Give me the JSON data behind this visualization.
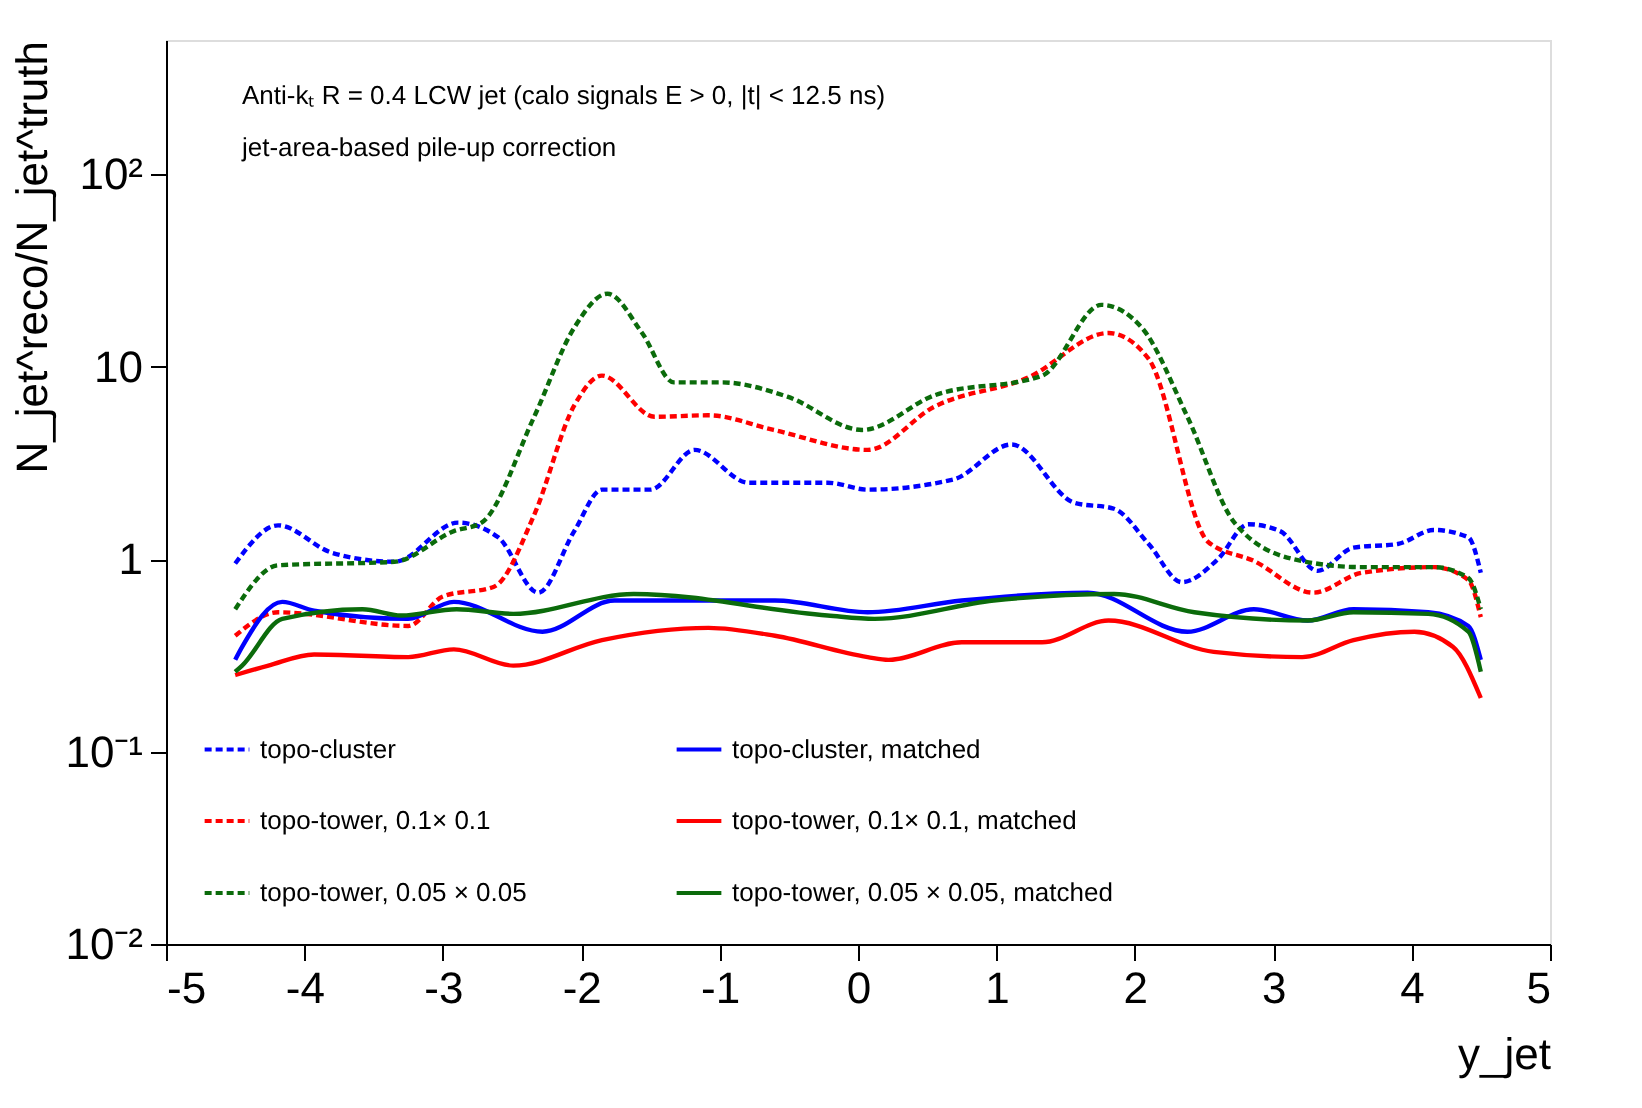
{
  "chart_data": {
    "type": "line",
    "xlabel": "y_jet",
    "ylabel": "N_jet^reco/N_jet^truth",
    "annotations": [
      "Anti-kₜ R = 0.4 LCW jet (calo signals E > 0, |t| < 12.5 ns)",
      "jet-area-based pile-up correction"
    ],
    "xlim": [
      -5,
      5
    ],
    "xticks": [
      -5,
      -4,
      -3,
      -2,
      -1,
      0,
      1,
      2,
      3,
      4,
      5
    ],
    "ylim": [
      0.01,
      500
    ],
    "yticks": [
      {
        "value": 0.01,
        "label": "10⁻²"
      },
      {
        "value": 0.1,
        "label": "10⁻¹"
      },
      1,
      10,
      {
        "value": 100,
        "label": "10²"
      }
    ],
    "log": "y",
    "grid": false,
    "legend": "bottom left",
    "marker": "none",
    "series": [
      {
        "name": "topo-cluster",
        "color": "#0000ff",
        "line_style": "dashed",
        "x": [
          -4.5,
          -4.19,
          -3.8,
          -3.35,
          -2.89,
          -2.6,
          -2.31,
          -2.05,
          -1.85,
          -1.5,
          -1.18,
          -0.79,
          -0.22,
          0.07,
          0.69,
          1.11,
          1.56,
          1.85,
          2.1,
          2.34,
          2.6,
          2.82,
          3.05,
          3.32,
          3.58,
          3.9,
          4.16,
          4.41,
          4.5
        ],
        "values": [
          0.95,
          1.5,
          1.08,
          0.97,
          1.55,
          1.3,
          0.67,
          1.4,
          2.3,
          2.3,
          3.7,
          2.5,
          2.5,
          2.3,
          2.6,
          3.95,
          1.97,
          1.83,
          1.2,
          0.76,
          1.0,
          1.52,
          1.4,
          0.87,
          1.15,
          1.2,
          1.42,
          1.3,
          0.85
        ]
      },
      {
        "name": "topo-tower, 0.1× 0.1",
        "color": "#ff0000",
        "line_style": "dashed",
        "x": [
          -4.5,
          -4.19,
          -3.25,
          -3.0,
          -2.63,
          -2.34,
          -2.05,
          -1.85,
          -1.47,
          -1.08,
          -0.61,
          0.07,
          0.55,
          1.23,
          1.81,
          2.1,
          2.53,
          2.86,
          3.29,
          3.64,
          4.16,
          4.41,
          4.5
        ],
        "values": [
          0.4,
          0.53,
          0.45,
          0.64,
          0.72,
          1.7,
          6.3,
          9,
          5.5,
          5.6,
          4.7,
          3.7,
          6.2,
          8.8,
          15,
          11,
          1.23,
          0.98,
          0.67,
          0.85,
          0.91,
          0.78,
          0.5
        ]
      },
      {
        "name": "topo-tower, 0.05 × 0.05",
        "color": "#0b6b0b",
        "line_style": "dashed",
        "x": [
          -4.5,
          -4.19,
          -3.35,
          -2.92,
          -2.72,
          -2.34,
          -2.05,
          -1.81,
          -1.56,
          -1.33,
          -0.98,
          -0.51,
          0.03,
          0.55,
          1.33,
          1.76,
          2.05,
          2.38,
          2.72,
          3.15,
          3.64,
          4.16,
          4.41,
          4.5
        ],
        "values": [
          0.55,
          0.93,
          0.97,
          1.4,
          1.55,
          5.5,
          16,
          24,
          15,
          8.3,
          8.3,
          7,
          4.7,
          7.1,
          9,
          21,
          16,
          5.5,
          1.55,
          1.0,
          0.91,
          0.91,
          0.8,
          0.55
        ]
      },
      {
        "name": "topo-cluster, matched",
        "color": "#0000ff",
        "line_style": "solid",
        "x": [
          -4.5,
          -4.45,
          -4.16,
          -3.93,
          -3.25,
          -2.92,
          -2.28,
          -1.76,
          -0.6,
          0.07,
          0.75,
          1.66,
          2.38,
          2.86,
          3.25,
          3.58,
          4.12,
          4.41,
          4.5
        ],
        "values": [
          0.3,
          0.35,
          0.6,
          0.54,
          0.49,
          0.6,
          0.42,
          0.61,
          0.61,
          0.53,
          0.61,
          0.67,
          0.42,
          0.55,
          0.48,
          0.55,
          0.53,
          0.45,
          0.3
        ]
      },
      {
        "name": "topo-tower, 0.1× 0.1, matched",
        "color": "#ff0000",
        "line_style": "solid",
        "x": [
          -4.5,
          -4.26,
          -3.93,
          -3.25,
          -2.92,
          -2.49,
          -1.85,
          -1.08,
          -0.6,
          0.07,
          0.22,
          0.75,
          1.33,
          1.81,
          2.57,
          3.21,
          3.58,
          4.02,
          4.3,
          4.5
        ],
        "values": [
          0.25,
          0.28,
          0.32,
          0.31,
          0.34,
          0.28,
          0.38,
          0.44,
          0.4,
          0.31,
          0.3,
          0.37,
          0.37,
          0.48,
          0.33,
          0.31,
          0.38,
          0.42,
          0.35,
          0.19
        ]
      },
      {
        "name": "topo-tower, 0.05 × 0.05, matched",
        "color": "#0b6b0b",
        "line_style": "solid",
        "x": [
          -4.5,
          -4.45,
          -4.16,
          -3.58,
          -3.3,
          -2.9,
          -2.49,
          -1.62,
          -0.22,
          0.12,
          0.98,
          1.85,
          2.43,
          3.25,
          3.58,
          4.12,
          4.41,
          4.5
        ],
        "values": [
          0.26,
          0.28,
          0.49,
          0.55,
          0.51,
          0.55,
          0.52,
          0.66,
          0.51,
          0.49,
          0.61,
          0.66,
          0.53,
          0.48,
          0.53,
          0.52,
          0.42,
          0.26
        ]
      }
    ]
  }
}
